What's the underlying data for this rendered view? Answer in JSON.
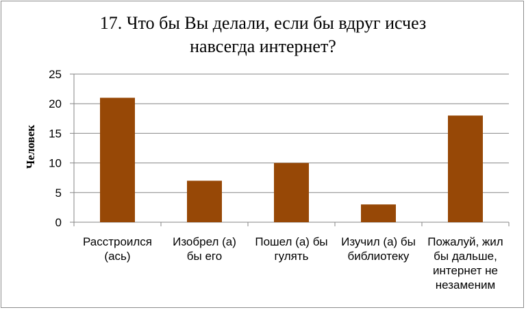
{
  "chart_data": {
    "type": "bar",
    "title_lines": [
      "17. Что бы Вы делали, если бы вдруг исчез",
      "навсегда интернет?"
    ],
    "ylabel": "Человек",
    "xlabel": "",
    "ylim": [
      0,
      25
    ],
    "yticks": [
      0,
      5,
      10,
      15,
      20,
      25
    ],
    "grid": true,
    "legend": "none",
    "bar_color": "#974806",
    "categories": [
      [
        "Расстроился",
        "(ась)"
      ],
      [
        "Изобрел (а)",
        "бы его"
      ],
      [
        "Пошел (а) бы",
        "гулять"
      ],
      [
        "Изучил (а) бы",
        "библиотеку"
      ],
      [
        "Пожалуй, жил",
        "бы дальше,",
        "интернет не",
        "незаменим"
      ]
    ],
    "values": [
      21,
      7,
      10,
      3,
      18
    ]
  }
}
